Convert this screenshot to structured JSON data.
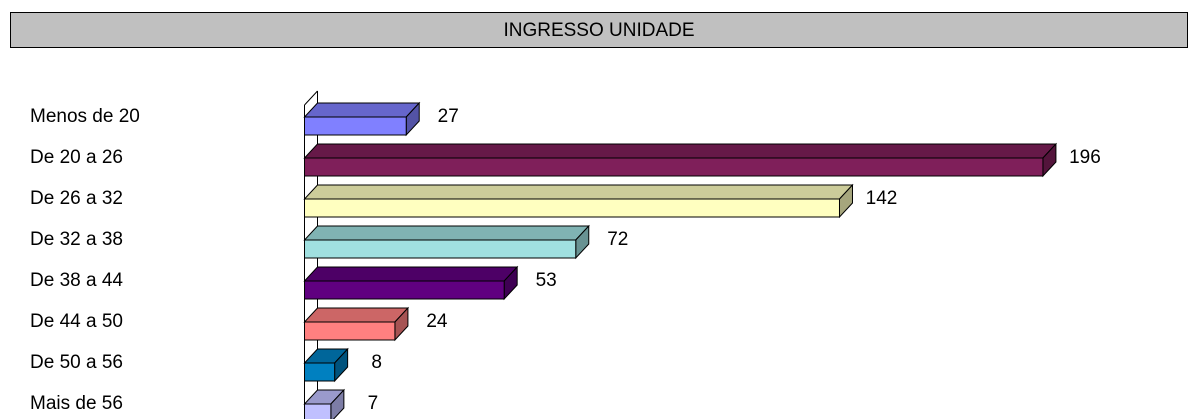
{
  "chart_data": {
    "type": "bar3d-horizontal",
    "title": "INGRESSO UNIDADE",
    "categories": [
      "Menos de 20",
      "De 20 a 26",
      "De 26 a 32",
      "De 32 a 38",
      "De 38 a 44",
      "De 44 a 50",
      "De 50 a 56",
      "Mais de 56"
    ],
    "values": [
      27,
      196,
      142,
      72,
      53,
      24,
      8,
      7
    ],
    "colors": [
      "#8080ff",
      "#7f1f5a",
      "#ffffc0",
      "#a0e0e0",
      "#600080",
      "#ff8080",
      "#0080c0",
      "#c0c0ff"
    ],
    "xlim": [
      0,
      200
    ]
  }
}
